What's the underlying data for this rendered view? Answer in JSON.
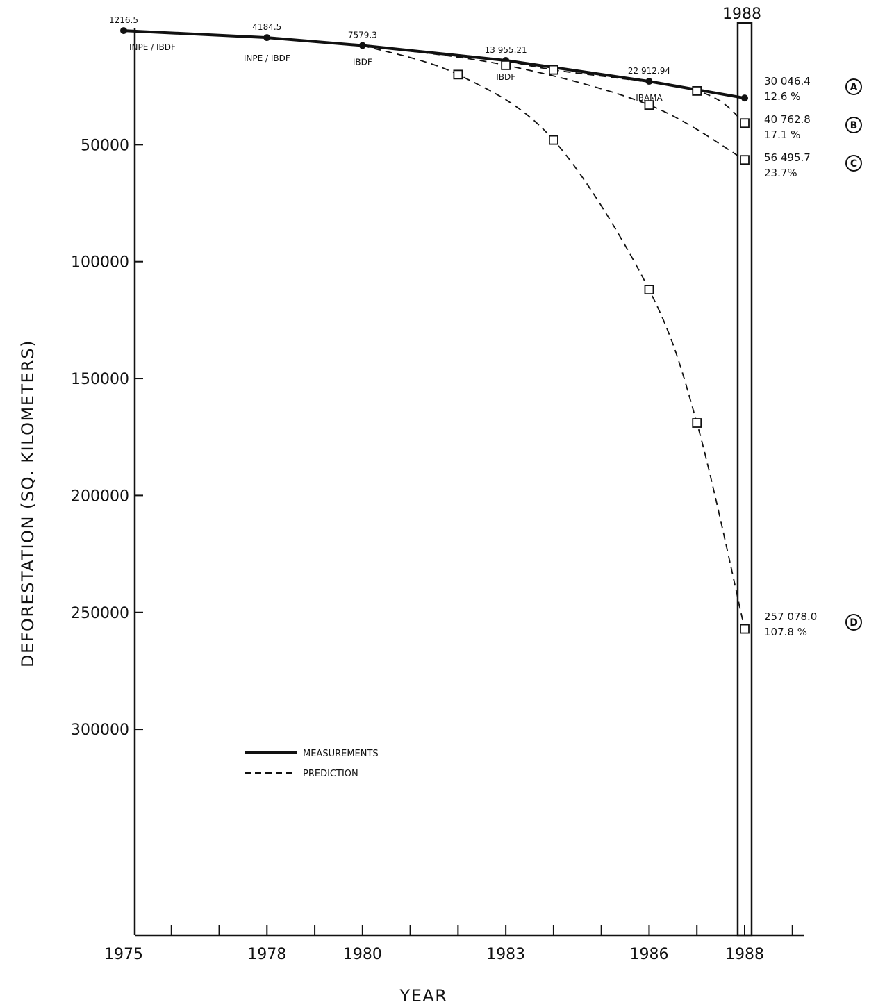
{
  "chart_data": {
    "type": "line",
    "xlabel": "YEAR",
    "ylabel": "DEFORESTATION (SQ. KILOMETERS)",
    "x_ticks": [
      "1975",
      "1978",
      "1980",
      "1983",
      "1986",
      "1988"
    ],
    "y_ticks": [
      "50000",
      "100000",
      "150000",
      "200000",
      "250000",
      "300000"
    ],
    "y_tick_values": [
      50000,
      100000,
      150000,
      200000,
      250000,
      300000
    ],
    "xlim": [
      1975,
      1988.7
    ],
    "ylim": [
      0,
      385000
    ],
    "y_inverted": true,
    "highlight_year_label": "1988",
    "legend": {
      "measurements": "MEASUREMENTS",
      "prediction": "PREDICTION",
      "placement": "lower-left"
    },
    "series": [
      {
        "name": "MEASUREMENTS",
        "style": "solid",
        "points": [
          {
            "x": 1975,
            "y": 1216.5,
            "value_label": "1216.5",
            "source_label": "INPE / IBDF"
          },
          {
            "x": 1978,
            "y": 4184.5,
            "value_label": "4184.5",
            "source_label": "INPE / IBDF"
          },
          {
            "x": 1980,
            "y": 7579.3,
            "value_label": "7579.3",
            "source_label": "IBDF"
          },
          {
            "x": 1983,
            "y": 13955.21,
            "value_label": "13 955.21",
            "source_label": "IBDF"
          },
          {
            "x": 1986,
            "y": 22912.94,
            "value_label": "22 912.94",
            "source_label": "IBAMA"
          },
          {
            "x": 1988,
            "y": 30046.4,
            "value_label": "30 046.4",
            "percent_label": "12.6 %",
            "curve_letter": "A"
          }
        ]
      },
      {
        "name": "PREDICTION",
        "curve_letter": "B",
        "style": "dashed",
        "points": [
          {
            "x": 1983,
            "y": 13955
          },
          {
            "x": 1984,
            "y": 18000
          },
          {
            "x": 1987,
            "y": 27000
          },
          {
            "x": 1988,
            "y": 40762.8,
            "value_label": "40 762.8",
            "percent_label": "17.1 %"
          }
        ]
      },
      {
        "name": "PREDICTION",
        "curve_letter": "C",
        "style": "dashed",
        "points": [
          {
            "x": 1980,
            "y": 7579
          },
          {
            "x": 1983,
            "y": 16000
          },
          {
            "x": 1986,
            "y": 33000
          },
          {
            "x": 1988,
            "y": 56495.7,
            "value_label": "56 495.7",
            "percent_label": "23.7%"
          }
        ]
      },
      {
        "name": "PREDICTION",
        "curve_letter": "D",
        "style": "dashed",
        "points": [
          {
            "x": 1980,
            "y": 7579
          },
          {
            "x": 1982,
            "y": 20000
          },
          {
            "x": 1984,
            "y": 48000
          },
          {
            "x": 1986,
            "y": 112000
          },
          {
            "x": 1987,
            "y": 169000
          },
          {
            "x": 1988,
            "y": 257078.0,
            "value_label": "257 078.0",
            "percent_label": "107.8 %"
          }
        ]
      }
    ]
  }
}
